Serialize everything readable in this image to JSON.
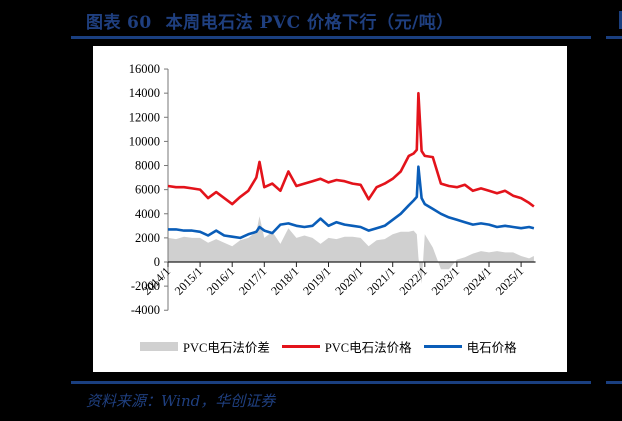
{
  "header": {
    "label": "图表",
    "number": "60",
    "title": "本周电石法 PVC 价格下行（元/吨）"
  },
  "footer": {
    "source": "资料来源：Wind，华创证券"
  },
  "legend": {
    "items": [
      {
        "label": "PVC电石法价差",
        "type": "area",
        "color": "#d0d0d0"
      },
      {
        "label": "PVC电石法价格",
        "type": "line",
        "color": "#e3131b"
      },
      {
        "label": "电石价格",
        "type": "line",
        "color": "#0a5db8"
      }
    ]
  },
  "colors": {
    "title_navy": "#1f3f7f",
    "rule_navy": "#1a3f80",
    "pvc_red": "#e3131b",
    "carbide_blue": "#0a5db8",
    "spread_gray": "#d0d0d0"
  },
  "chart_data": {
    "type": "line",
    "title": "本周电石法 PVC 价格下行（元/吨）",
    "xlabel": "",
    "ylabel": "",
    "ylim": [
      -4000,
      16000
    ],
    "yticks": [
      16000,
      14000,
      12000,
      10000,
      8000,
      6000,
      4000,
      2000,
      0,
      -2000,
      -4000
    ],
    "xtick_labels": [
      "2014/1",
      "2015/1",
      "2016/1",
      "2017/1",
      "2018/1",
      "2019/1",
      "2020/1",
      "2021/1",
      "2022/1",
      "2023/1",
      "2024/1",
      "2025/1"
    ],
    "grid": false,
    "legend_position": "bottom",
    "x": [
      2014.0,
      2014.25,
      2014.5,
      2014.75,
      2015.0,
      2015.25,
      2015.5,
      2015.75,
      2016.0,
      2016.25,
      2016.5,
      2016.75,
      2016.85,
      2017.0,
      2017.25,
      2017.5,
      2017.75,
      2018.0,
      2018.25,
      2018.5,
      2018.75,
      2019.0,
      2019.25,
      2019.5,
      2019.75,
      2020.0,
      2020.25,
      2020.5,
      2020.75,
      2021.0,
      2021.25,
      2021.5,
      2021.65,
      2021.75,
      2021.8,
      2021.9,
      2022.0,
      2022.25,
      2022.5,
      2022.75,
      2023.0,
      2023.25,
      2023.5,
      2023.75,
      2024.0,
      2024.25,
      2024.5,
      2024.75,
      2025.0,
      2025.25,
      2025.4
    ],
    "series": [
      {
        "name": "PVC电石法价格",
        "type": "line",
        "values": [
          6300,
          6200,
          6200,
          6100,
          6000,
          5300,
          5800,
          5300,
          4800,
          5400,
          5900,
          7000,
          8300,
          6200,
          6500,
          5900,
          7500,
          6300,
          6500,
          6700,
          6900,
          6600,
          6800,
          6700,
          6500,
          6400,
          5200,
          6200,
          6500,
          6900,
          7500,
          8800,
          9000,
          9300,
          14000,
          9200,
          8800,
          8700,
          6500,
          6300,
          6200,
          6400,
          5900,
          6100,
          5900,
          5700,
          5900,
          5500,
          5300,
          4900,
          4600
        ]
      },
      {
        "name": "电石价格",
        "type": "line",
        "values": [
          2700,
          2700,
          2600,
          2600,
          2500,
          2200,
          2600,
          2200,
          2100,
          2000,
          2300,
          2500,
          2900,
          2600,
          2400,
          3100,
          3200,
          3000,
          2900,
          3000,
          3600,
          3000,
          3300,
          3100,
          3000,
          2900,
          2600,
          2800,
          3000,
          3500,
          4000,
          4700,
          5100,
          5400,
          7900,
          5300,
          4800,
          4400,
          4000,
          3700,
          3500,
          3300,
          3100,
          3200,
          3100,
          2900,
          3000,
          2900,
          2800,
          2900,
          2800
        ]
      },
      {
        "name": "PVC电石法价差",
        "type": "area",
        "values": [
          2000,
          1900,
          2100,
          2000,
          2000,
          1600,
          1900,
          1600,
          1300,
          1800,
          2000,
          2500,
          3800,
          2000,
          2500,
          1500,
          2800,
          2000,
          2200,
          2000,
          1500,
          2000,
          1900,
          2100,
          2100,
          2000,
          1300,
          1800,
          1900,
          2300,
          2500,
          2500,
          2600,
          2300,
          400,
          -1800,
          2300,
          1200,
          -600,
          -600,
          200,
          400,
          700,
          900,
          800,
          900,
          800,
          800,
          500,
          300,
          500
        ]
      }
    ]
  }
}
